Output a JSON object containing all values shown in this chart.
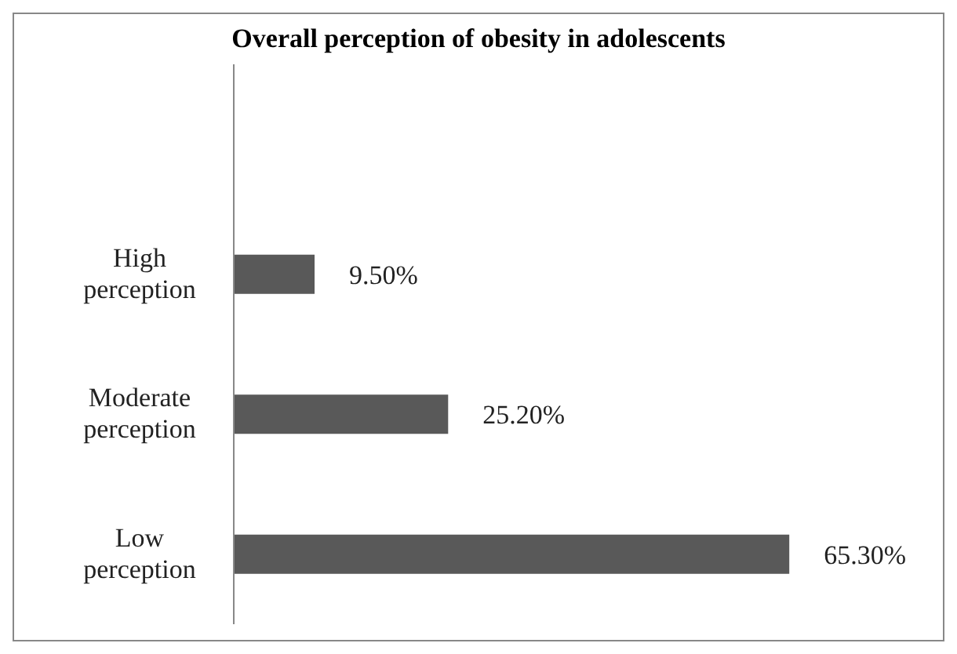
{
  "chart_data": {
    "type": "bar",
    "orientation": "horizontal",
    "title": "Overall perception of obesity in adolescents",
    "categories": [
      null,
      "High perception",
      "Moderate perception",
      "Low perception"
    ],
    "values": [
      null,
      9.5,
      25.2,
      65.3
    ],
    "value_labels": [
      null,
      "9.50%",
      "25.20%",
      "65.30%"
    ],
    "color": "#595959"
  }
}
